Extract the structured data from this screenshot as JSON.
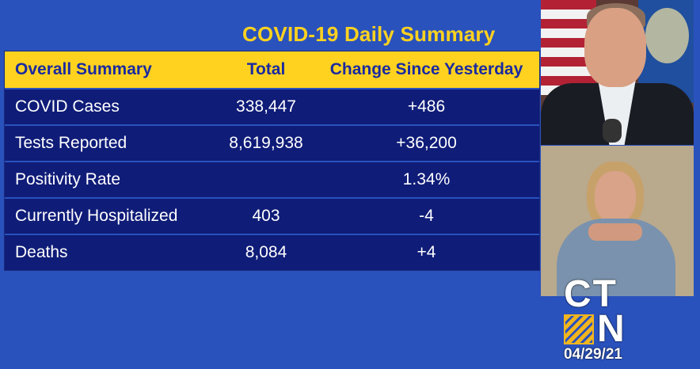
{
  "title": "COVID-19 Daily Summary",
  "table": {
    "headers": [
      "Overall Summary",
      "Total",
      "Change Since Yesterday"
    ],
    "rows": [
      {
        "label": "COVID Cases",
        "total": "338,447",
        "change": "+486"
      },
      {
        "label": "Tests Reported",
        "total": "8,619,938",
        "change": "+36,200"
      },
      {
        "label": "Positivity Rate",
        "total": "",
        "change": "1.34%"
      },
      {
        "label": "Currently Hospitalized",
        "total": "403",
        "change": "-4"
      },
      {
        "label": "Deaths",
        "total": "8,084",
        "change": "+4"
      }
    ]
  },
  "logo": {
    "line1": "CT",
    "line2": "N"
  },
  "date": "04/29/21",
  "colors": {
    "background": "#2a52bd",
    "header": "#ffd21f",
    "row": "#0f1c78",
    "title": "#ffd21f"
  }
}
